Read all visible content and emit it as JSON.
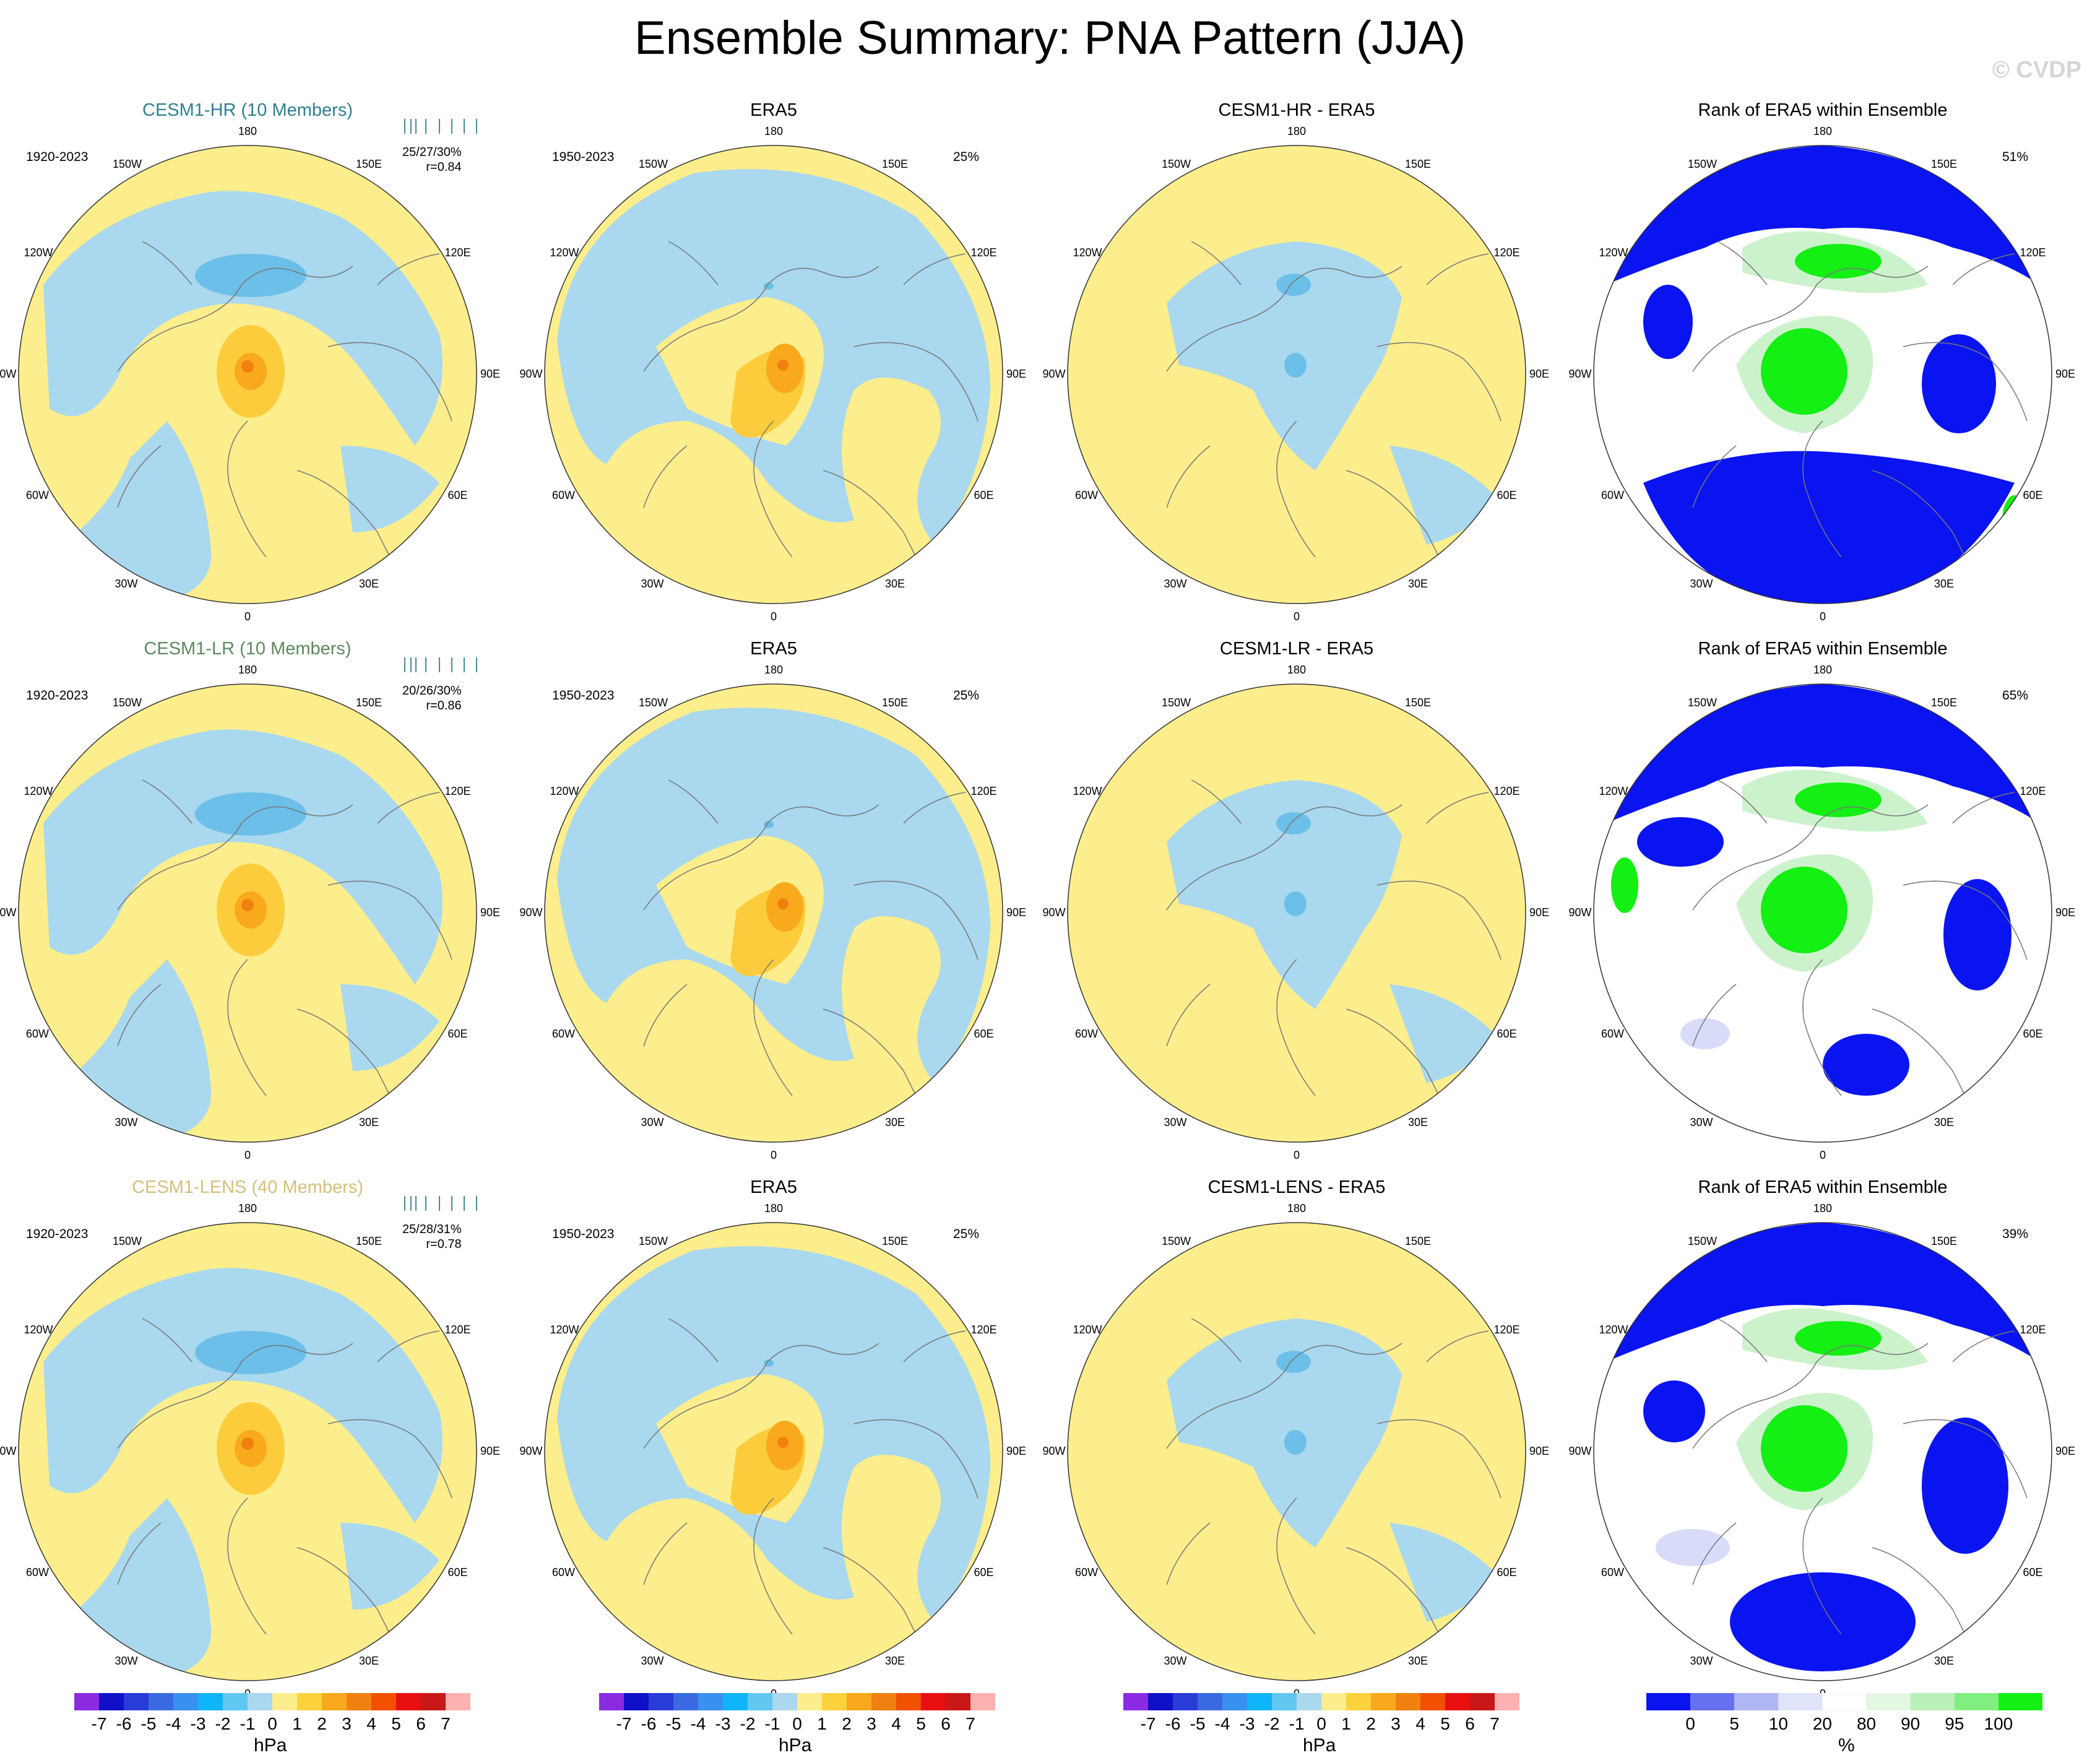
{
  "title": "Ensemble Summary: PNA Pattern (JJA)",
  "watermark": "© CVDP",
  "colors": {
    "land_yellow": "#fcee8c",
    "ocean_blue": "#aad8ee",
    "neg1": "#6cbfe8",
    "pos1": "#fccc3c",
    "pos2": "#f8aa1c",
    "pos3": "#f08010",
    "rank_blue": "#0a14f0",
    "rank_green": "#14ef14",
    "rank_lightblue": "#d8dcf8",
    "rank_lightgreen": "#ccf2cc"
  },
  "lon_labels": [
    "180",
    "150E",
    "120E",
    "90E",
    "60E",
    "30E",
    "0",
    "30W",
    "60W",
    "90W",
    "120W",
    "150W"
  ],
  "rows": [
    {
      "model": "CESM1-HR (10 Members)",
      "model_color": "#2f7f90",
      "model_period": "1920-2023",
      "model_stats": "25/27/30%",
      "model_r": "r=0.84",
      "obs_title": "ERA5",
      "obs_period": "1950-2023",
      "obs_pct": "25%",
      "diff_title": "CESM1-HR - ERA5",
      "rank_title": "Rank of ERA5 within Ensemble",
      "rank_pct": "51%"
    },
    {
      "model": "CESM1-LR (10 Members)",
      "model_color": "#5d8a5f",
      "model_period": "1920-2023",
      "model_stats": "20/26/30%",
      "model_r": "r=0.86",
      "obs_title": "ERA5",
      "obs_period": "1950-2023",
      "obs_pct": "25%",
      "diff_title": "CESM1-LR - ERA5",
      "rank_title": "Rank of ERA5 within Ensemble",
      "rank_pct": "65%"
    },
    {
      "model": "CESM1-LENS (40 Members)",
      "model_color": "#d4c07a",
      "model_period": "1920-2023",
      "model_stats": "25/28/31%",
      "model_r": "r=0.78",
      "obs_title": "ERA5",
      "obs_period": "1950-2023",
      "obs_pct": "25%",
      "diff_title": "CESM1-LENS - ERA5",
      "rank_title": "Rank of ERA5 within Ensemble",
      "rank_pct": "39%"
    }
  ],
  "chart_data": {
    "type": "heatmap",
    "projection": "north-polar-stereographic",
    "variable": "PNA Pattern (JJA)",
    "pressure_colorbar": {
      "unit": "hPa",
      "ticks": [
        "-7",
        "-6",
        "-5",
        "-4",
        "-3",
        "-2",
        "-1",
        "0",
        "1",
        "2",
        "3",
        "4",
        "5",
        "6",
        "7"
      ],
      "colors": [
        "#8a2be2",
        "#1010c8",
        "#2a3cd8",
        "#3a6ae0",
        "#3a90f0",
        "#10b4f8",
        "#60c8f0",
        "#aad8ee",
        "#fcee8c",
        "#fcd23c",
        "#f8aa1c",
        "#f08010",
        "#f05000",
        "#e81010",
        "#c81818",
        "#ffb0b0"
      ]
    },
    "rank_colorbar": {
      "unit": "%",
      "ticks": [
        "0",
        "5",
        "10",
        "20",
        "80",
        "90",
        "95",
        "100"
      ],
      "colors": [
        "#0a14f0",
        "#6670f0",
        "#b0b6f4",
        "#e0e4fa",
        "#ffffff",
        "#e2f8e2",
        "#baf0ba",
        "#80ef80",
        "#14ef14"
      ]
    }
  }
}
